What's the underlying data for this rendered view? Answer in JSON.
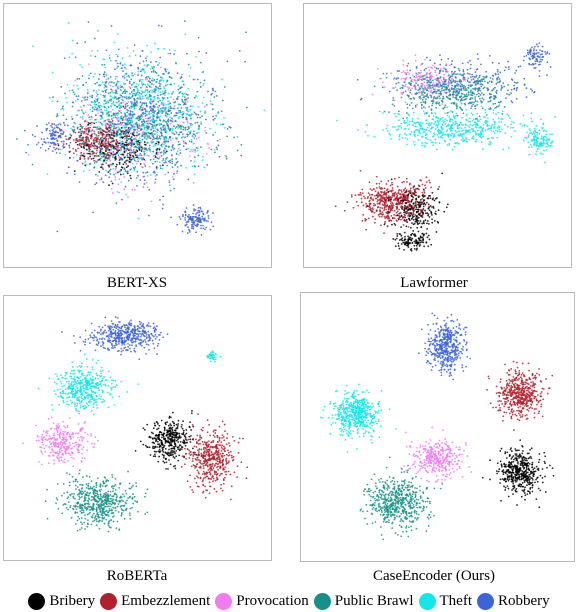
{
  "chart_data": [
    {
      "type": "scatter",
      "title": "BERT-XS",
      "description_clusters": [
        {
          "series": "Public Brawl",
          "cx": 0.5,
          "cy": 0.45,
          "sx": 0.25,
          "sy": 0.2,
          "n": 650
        },
        {
          "series": "Theft",
          "cx": 0.5,
          "cy": 0.42,
          "sx": 0.24,
          "sy": 0.2,
          "n": 650
        },
        {
          "series": "Robbery",
          "cx": 0.5,
          "cy": 0.45,
          "sx": 0.25,
          "sy": 0.22,
          "n": 550
        },
        {
          "series": "Provocation",
          "cx": 0.48,
          "cy": 0.48,
          "sx": 0.22,
          "sy": 0.2,
          "n": 300
        },
        {
          "series": "Embezzlement",
          "cx": 0.36,
          "cy": 0.52,
          "sx": 0.12,
          "sy": 0.07,
          "n": 320
        },
        {
          "series": "Bribery",
          "cx": 0.42,
          "cy": 0.55,
          "sx": 0.14,
          "sy": 0.08,
          "n": 220
        },
        {
          "series": "Robbery",
          "cx": 0.72,
          "cy": 0.82,
          "sx": 0.05,
          "sy": 0.04,
          "n": 140
        },
        {
          "series": "Robbery",
          "cx": 0.18,
          "cy": 0.5,
          "sx": 0.06,
          "sy": 0.05,
          "n": 90
        }
      ]
    },
    {
      "type": "scatter",
      "title": "Lawformer",
      "description_clusters": [
        {
          "series": "Embezzlement",
          "cx": 0.33,
          "cy": 0.75,
          "sx": 0.12,
          "sy": 0.07,
          "n": 500
        },
        {
          "series": "Bribery",
          "cx": 0.42,
          "cy": 0.78,
          "sx": 0.09,
          "sy": 0.07,
          "n": 250
        },
        {
          "series": "Bribery",
          "cx": 0.4,
          "cy": 0.9,
          "sx": 0.06,
          "sy": 0.03,
          "n": 120
        },
        {
          "series": "Public Brawl",
          "cx": 0.55,
          "cy": 0.33,
          "sx": 0.2,
          "sy": 0.07,
          "n": 450
        },
        {
          "series": "Theft",
          "cx": 0.55,
          "cy": 0.47,
          "sx": 0.22,
          "sy": 0.06,
          "n": 500
        },
        {
          "series": "Robbery",
          "cx": 0.6,
          "cy": 0.3,
          "sx": 0.22,
          "sy": 0.08,
          "n": 250
        },
        {
          "series": "Provocation",
          "cx": 0.45,
          "cy": 0.3,
          "sx": 0.12,
          "sy": 0.06,
          "n": 200
        },
        {
          "series": "Theft",
          "cx": 0.88,
          "cy": 0.52,
          "sx": 0.04,
          "sy": 0.05,
          "n": 120
        },
        {
          "series": "Robbery",
          "cx": 0.87,
          "cy": 0.2,
          "sx": 0.04,
          "sy": 0.04,
          "n": 80
        }
      ]
    },
    {
      "type": "scatter",
      "title": "RoBERTa",
      "description_clusters": [
        {
          "series": "Robbery",
          "cx": 0.45,
          "cy": 0.15,
          "sx": 0.12,
          "sy": 0.05,
          "n": 450
        },
        {
          "series": "Theft",
          "cx": 0.3,
          "cy": 0.35,
          "sx": 0.09,
          "sy": 0.07,
          "n": 450
        },
        {
          "series": "Provocation",
          "cx": 0.22,
          "cy": 0.55,
          "sx": 0.09,
          "sy": 0.07,
          "n": 300
        },
        {
          "series": "Public Brawl",
          "cx": 0.35,
          "cy": 0.78,
          "sx": 0.12,
          "sy": 0.08,
          "n": 550
        },
        {
          "series": "Bribery",
          "cx": 0.62,
          "cy": 0.55,
          "sx": 0.07,
          "sy": 0.07,
          "n": 380
        },
        {
          "series": "Embezzlement",
          "cx": 0.78,
          "cy": 0.62,
          "sx": 0.08,
          "sy": 0.1,
          "n": 450
        },
        {
          "series": "Theft",
          "cx": 0.78,
          "cy": 0.23,
          "sx": 0.02,
          "sy": 0.02,
          "n": 40
        }
      ]
    },
    {
      "type": "scatter",
      "title": "CaseEncoder (Ours)",
      "description_clusters": [
        {
          "series": "Robbery",
          "cx": 0.53,
          "cy": 0.2,
          "sx": 0.06,
          "sy": 0.08,
          "n": 450
        },
        {
          "series": "Theft",
          "cx": 0.2,
          "cy": 0.45,
          "sx": 0.08,
          "sy": 0.07,
          "n": 500
        },
        {
          "series": "Provocation",
          "cx": 0.5,
          "cy": 0.62,
          "sx": 0.08,
          "sy": 0.06,
          "n": 350
        },
        {
          "series": "Public Brawl",
          "cx": 0.35,
          "cy": 0.78,
          "sx": 0.1,
          "sy": 0.08,
          "n": 550
        },
        {
          "series": "Embezzlement",
          "cx": 0.8,
          "cy": 0.38,
          "sx": 0.07,
          "sy": 0.08,
          "n": 480
        },
        {
          "series": "Bribery",
          "cx": 0.8,
          "cy": 0.67,
          "sx": 0.07,
          "sy": 0.07,
          "n": 450
        }
      ]
    }
  ],
  "legend": [
    {
      "label": "Bribery",
      "color": "#000000"
    },
    {
      "label": "Embezzlement",
      "color": "#b0202d"
    },
    {
      "label": "Provocation",
      "color": "#f07cf0"
    },
    {
      "label": "Public Brawl",
      "color": "#17908a"
    },
    {
      "label": "Theft",
      "color": "#14e6ea"
    },
    {
      "label": "Robbery",
      "color": "#3d63d8"
    }
  ]
}
